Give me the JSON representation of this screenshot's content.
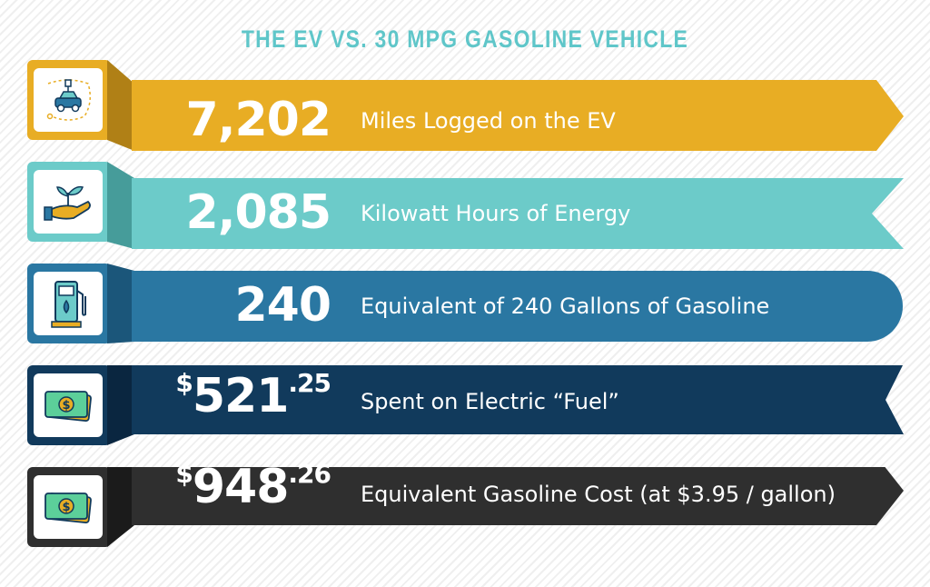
{
  "title": "THE EV VS. 30 MPG GASOLINE VEHICLE",
  "rows": [
    {
      "value": "7,202",
      "label": "Miles Logged on the EV",
      "color": "#e8ad24",
      "dark": "#b08016",
      "icon": "ev-car-icon"
    },
    {
      "value": "2,085",
      "label": "Kilowatt Hours of Energy",
      "color": "#6ccbc9",
      "dark": "#469c9a",
      "icon": "hand-plant-icon"
    },
    {
      "value": "240",
      "label": "Equivalent of 240 Gallons of Gasoline",
      "color": "#2a77a2",
      "dark": "#1b567a",
      "icon": "gas-pump-icon"
    },
    {
      "dollar": "$",
      "value": "521",
      "cents": ".25",
      "label": "Spent on Electric “Fuel”",
      "color": "#113a5c",
      "dark": "#0a2640",
      "icon": "money-icon"
    },
    {
      "dollar": "$",
      "value": "948",
      "cents": ".26",
      "label": "Equivalent Gasoline Cost (at $3.95 / gallon)",
      "color": "#2f2f2f",
      "dark": "#1b1b1b",
      "icon": "money-icon"
    }
  ]
}
